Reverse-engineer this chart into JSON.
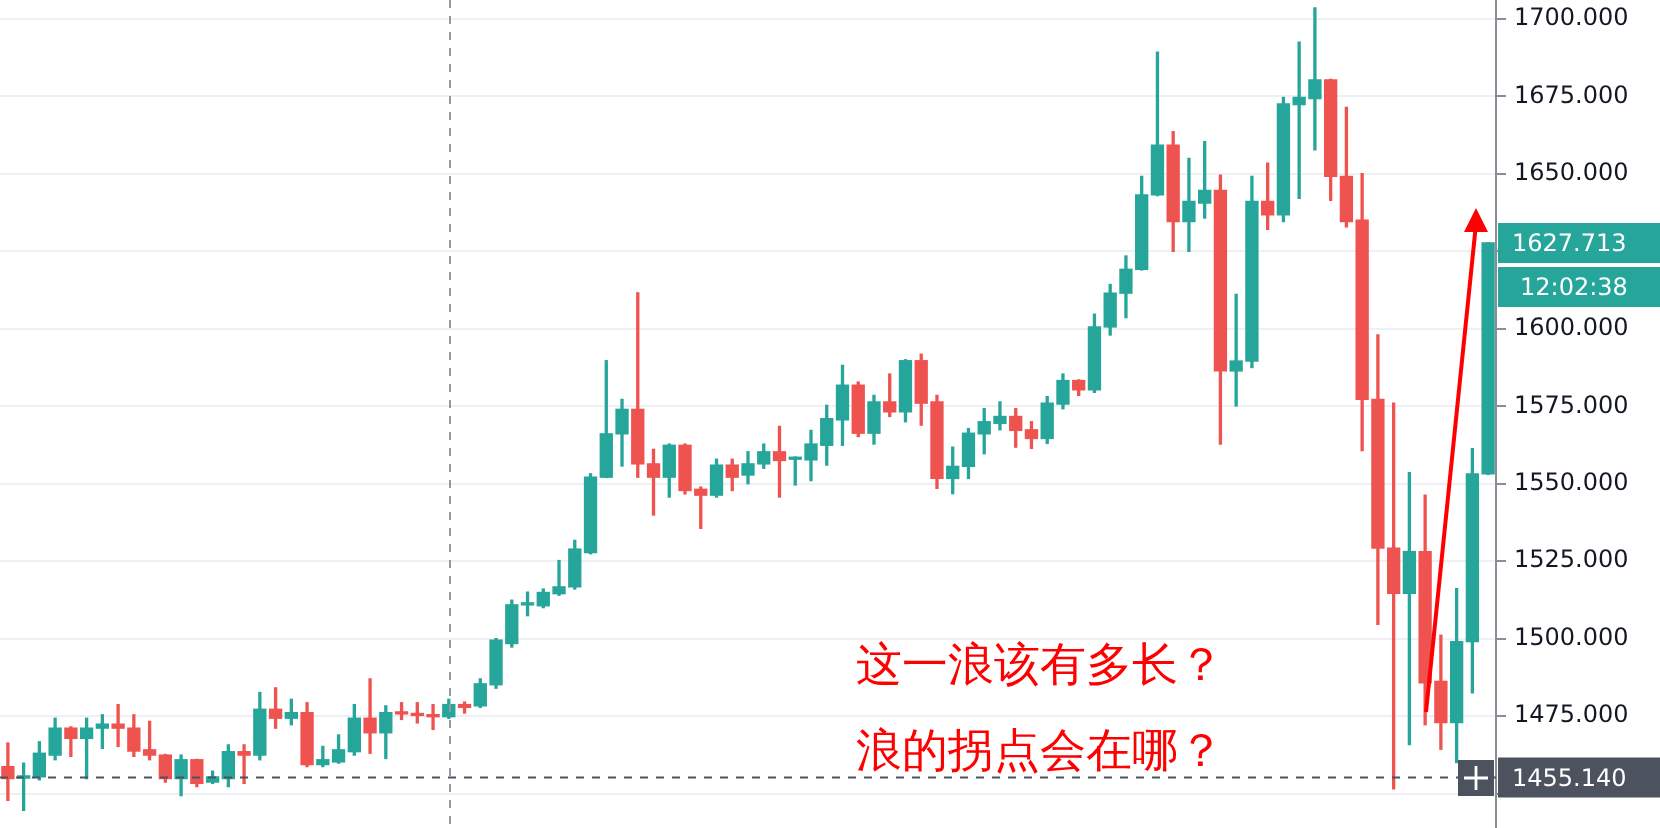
{
  "chart_data": {
    "type": "candlestick",
    "categories": [
      null,
      null,
      null,
      null,
      null,
      null,
      null,
      null,
      null,
      null,
      null,
      null,
      null,
      null,
      null,
      null,
      null,
      null,
      null,
      null,
      null,
      null,
      null,
      null,
      null,
      null,
      null,
      null,
      null,
      null,
      null,
      null,
      null,
      null,
      null,
      null,
      null,
      null,
      null,
      null,
      null,
      null,
      null,
      null,
      null,
      null,
      null,
      null,
      null,
      null,
      null,
      null,
      null,
      null,
      null,
      null,
      null,
      null,
      null,
      null,
      null,
      null,
      null,
      null,
      null,
      null,
      null,
      null,
      null,
      null,
      null,
      null,
      null,
      null,
      null,
      null,
      null,
      null,
      null,
      null,
      null,
      null,
      null,
      null,
      null,
      null,
      null,
      null,
      null,
      null,
      null,
      null,
      null,
      null,
      null
    ],
    "ohlc": [
      [
        1458.7,
        1466.3,
        1447.8,
        1454.8
      ],
      [
        1455.0,
        1459.8,
        1444.6,
        1455.7
      ],
      [
        1455.4,
        1466.7,
        1454.4,
        1463.0
      ],
      [
        1462.4,
        1474.3,
        1460.9,
        1471.1
      ],
      [
        1471.1,
        1471.5,
        1462.0,
        1467.8
      ],
      [
        1467.8,
        1474.3,
        1454.8,
        1471.1
      ],
      [
        1471.1,
        1475.4,
        1464.6,
        1472.4
      ],
      [
        1472.4,
        1478.7,
        1465.2,
        1471.1
      ],
      [
        1471.1,
        1475.4,
        1462.0,
        1463.7
      ],
      [
        1464.1,
        1473.3,
        1460.9,
        1462.4
      ],
      [
        1462.4,
        1462.6,
        1453.7,
        1454.8
      ],
      [
        1454.8,
        1462.4,
        1449.3,
        1460.9
      ],
      [
        1460.9,
        1461.0,
        1452.2,
        1453.3
      ],
      [
        1453.7,
        1457.2,
        1453.3,
        1455.4
      ],
      [
        1454.8,
        1465.7,
        1452.2,
        1463.5
      ],
      [
        1463.5,
        1465.7,
        1453.3,
        1462.4
      ],
      [
        1462.4,
        1482.6,
        1460.9,
        1477.2
      ],
      [
        1477.2,
        1484.1,
        1471.1,
        1474.3
      ],
      [
        1474.3,
        1480.4,
        1472.2,
        1476.1
      ],
      [
        1476.1,
        1479.3,
        1458.7,
        1459.3
      ],
      [
        1459.3,
        1465.2,
        1458.7,
        1460.9
      ],
      [
        1460.2,
        1468.9,
        1459.8,
        1464.1
      ],
      [
        1463.5,
        1478.7,
        1462.4,
        1474.3
      ],
      [
        1474.3,
        1487.0,
        1463.0,
        1469.6
      ],
      [
        1469.6,
        1478.3,
        1461.3,
        1476.1
      ],
      [
        1476.1,
        1479.3,
        1473.9,
        1475.7
      ],
      [
        1475.7,
        1479.3,
        1472.8,
        1475.2
      ],
      [
        1475.2,
        1478.7,
        1470.7,
        1474.8
      ],
      [
        1474.8,
        1480.4,
        1474.3,
        1478.7
      ],
      [
        1478.7,
        1479.5,
        1476.0,
        1477.8
      ],
      [
        1478.3,
        1487.0,
        1477.8,
        1485.4
      ],
      [
        1485.1,
        1500.0,
        1484.0,
        1499.5
      ],
      [
        1498.4,
        1512.4,
        1497.3,
        1510.9
      ],
      [
        1510.9,
        1515.0,
        1507.4,
        1511.4
      ],
      [
        1510.6,
        1516.0,
        1510.0,
        1514.9
      ],
      [
        1514.5,
        1525.2,
        1514.0,
        1516.7
      ],
      [
        1516.7,
        1531.7,
        1516.0,
        1528.9
      ],
      [
        1527.8,
        1553.2,
        1527.4,
        1552.1
      ],
      [
        1552.1,
        1589.7,
        1552.0,
        1566.1
      ],
      [
        1566.1,
        1577.2,
        1555.7,
        1574.0
      ],
      [
        1574.0,
        1611.6,
        1552.1,
        1556.4
      ],
      [
        1556.4,
        1561.1,
        1539.9,
        1552.1
      ],
      [
        1552.1,
        1562.8,
        1545.7,
        1562.4
      ],
      [
        1562.4,
        1562.8,
        1546.7,
        1547.8
      ],
      [
        1548.2,
        1548.9,
        1535.6,
        1546.3
      ],
      [
        1546.3,
        1557.9,
        1545.7,
        1556.0
      ],
      [
        1556.0,
        1557.9,
        1547.8,
        1552.1
      ],
      [
        1552.8,
        1560.3,
        1550.0,
        1556.4
      ],
      [
        1556.4,
        1562.8,
        1555.0,
        1560.3
      ],
      [
        1560.3,
        1568.5,
        1545.7,
        1557.5
      ],
      [
        1557.9,
        1558.6,
        1549.6,
        1558.2
      ],
      [
        1557.7,
        1567.2,
        1551.0,
        1562.8
      ],
      [
        1562.4,
        1575.3,
        1556.0,
        1571.0
      ],
      [
        1570.6,
        1588.2,
        1562.4,
        1581.8
      ],
      [
        1581.8,
        1582.8,
        1565.2,
        1566.3
      ],
      [
        1566.3,
        1578.5,
        1562.8,
        1576.4
      ],
      [
        1576.4,
        1585.4,
        1571.7,
        1573.2
      ],
      [
        1573.2,
        1590.0,
        1570.0,
        1589.7
      ],
      [
        1589.7,
        1591.8,
        1568.9,
        1576.0
      ],
      [
        1576.4,
        1578.5,
        1548.5,
        1551.7
      ],
      [
        1551.7,
        1561.8,
        1546.8,
        1555.6
      ],
      [
        1555.6,
        1567.8,
        1551.7,
        1566.3
      ],
      [
        1566.1,
        1574.2,
        1559.7,
        1570.0
      ],
      [
        1569.5,
        1576.4,
        1567.4,
        1571.7
      ],
      [
        1571.7,
        1574.2,
        1561.8,
        1567.2
      ],
      [
        1567.4,
        1570.0,
        1561.4,
        1564.6
      ],
      [
        1564.6,
        1578.1,
        1563.0,
        1576.0
      ],
      [
        1575.7,
        1585.4,
        1574.2,
        1583.3
      ],
      [
        1583.3,
        1583.5,
        1578.5,
        1580.3
      ],
      [
        1580.3,
        1604.7,
        1579.5,
        1600.6
      ],
      [
        1600.6,
        1614.3,
        1598.0,
        1611.5
      ],
      [
        1611.5,
        1623.5,
        1603.6,
        1619.2
      ],
      [
        1619.2,
        1649.2,
        1619.0,
        1643.2
      ],
      [
        1643.2,
        1689.3,
        1643.0,
        1659.3
      ],
      [
        1659.3,
        1663.6,
        1625.0,
        1634.6
      ],
      [
        1634.6,
        1655.0,
        1625.0,
        1641.1
      ],
      [
        1640.6,
        1660.4,
        1635.7,
        1644.7
      ],
      [
        1644.7,
        1649.6,
        1562.8,
        1586.4
      ],
      [
        1586.4,
        1611.1,
        1575.1,
        1589.6
      ],
      [
        1589.6,
        1649.2,
        1587.5,
        1641.1
      ],
      [
        1641.1,
        1653.5,
        1632.1,
        1636.8
      ],
      [
        1636.8,
        1674.7,
        1634.6,
        1672.6
      ],
      [
        1672.4,
        1692.5,
        1642.1,
        1674.7
      ],
      [
        1674.3,
        1703.6,
        1657.8,
        1680.3
      ],
      [
        1680.3,
        1680.5,
        1641.5,
        1649.2
      ],
      [
        1649.2,
        1671.5,
        1632.9,
        1634.6
      ],
      [
        1635.1,
        1650.1,
        1560.7,
        1577.2
      ],
      [
        1577.2,
        1598.0,
        1504.6,
        1529.2
      ],
      [
        1529.2,
        1576.0,
        1451.5,
        1514.6
      ],
      [
        1514.6,
        1553.6,
        1465.8,
        1528.1
      ],
      [
        1528.1,
        1546.3,
        1472.2,
        1485.7
      ],
      [
        1486.2,
        1501.1,
        1464.3,
        1472.9
      ],
      [
        1472.9,
        1516.1,
        1460.0,
        1499.0
      ],
      [
        1499.0,
        1561.3,
        1482.5,
        1553.2
      ],
      [
        1553.2,
        1627.713,
        1553.0,
        1627.713
      ]
    ],
    "colors": [
      "#ef5350",
      "#26a69a",
      "#26a69a",
      "#26a69a",
      "#ef5350",
      "#26a69a",
      "#26a69a",
      "#ef5350",
      "#ef5350",
      "#ef5350",
      "#ef5350",
      "#26a69a",
      "#ef5350",
      "#26a69a",
      "#26a69a",
      "#ef5350",
      "#26a69a",
      "#ef5350",
      "#26a69a",
      "#ef5350",
      "#26a69a",
      "#26a69a",
      "#26a69a",
      "#ef5350",
      "#26a69a",
      "#ef5350",
      "#ef5350",
      "#ef5350",
      "#26a69a",
      "#ef5350",
      "#26a69a",
      "#26a69a",
      "#26a69a",
      "#26a69a",
      "#26a69a",
      "#26a69a",
      "#26a69a",
      "#26a69a",
      "#26a69a",
      "#26a69a",
      "#ef5350",
      "#ef5350",
      "#26a69a",
      "#ef5350",
      "#ef5350",
      "#26a69a",
      "#ef5350",
      "#26a69a",
      "#26a69a",
      "#ef5350",
      "#26a69a",
      "#26a69a",
      "#26a69a",
      "#26a69a",
      "#ef5350",
      "#26a69a",
      "#ef5350",
      "#26a69a",
      "#ef5350",
      "#ef5350",
      "#26a69a",
      "#26a69a",
      "#26a69a",
      "#26a69a",
      "#ef5350",
      "#ef5350",
      "#26a69a",
      "#26a69a",
      "#ef5350",
      "#26a69a",
      "#26a69a",
      "#26a69a",
      "#26a69a",
      "#26a69a",
      "#ef5350",
      "#26a69a",
      "#26a69a",
      "#ef5350",
      "#26a69a",
      "#26a69a",
      "#ef5350",
      "#26a69a",
      "#26a69a",
      "#26a69a",
      "#ef5350",
      "#ef5350",
      "#ef5350",
      "#ef5350",
      "#ef5350",
      "#26a69a",
      "#ef5350",
      "#ef5350",
      "#26a69a",
      "#26a69a",
      "#26a69a"
    ],
    "ylim": [
      1439,
      1706
    ],
    "yticks": [
      {
        "value": 1450,
        "label": null
      },
      {
        "value": 1475,
        "label": "1475.000"
      },
      {
        "value": 1500,
        "label": "1500.000"
      },
      {
        "value": 1525,
        "label": "1525.000"
      },
      {
        "value": 1550,
        "label": "1550.000"
      },
      {
        "value": 1575,
        "label": "1575.000"
      },
      {
        "value": 1600,
        "label": "1600.000"
      },
      {
        "value": 1625,
        "label": null
      },
      {
        "value": 1650,
        "label": "1650.000"
      },
      {
        "value": 1675,
        "label": "1675.000"
      },
      {
        "value": 1700,
        "label": "1700.000"
      }
    ],
    "grid": "y",
    "tick_labels": "y",
    "ref_lines": [
      {
        "axis": "y",
        "value": 1455.14,
        "label": "1455.140",
        "color": "#4c525e",
        "line_style": "dashed"
      }
    ],
    "annotations": [
      "1627.713",
      "12:02:38",
      "这一浪该有多长？",
      "浪的拐点会在哪？"
    ]
  }
}
